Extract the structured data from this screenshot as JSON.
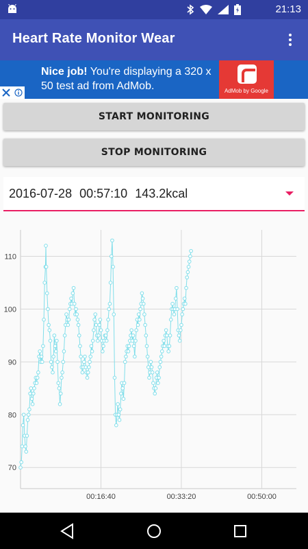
{
  "status_bar": {
    "time": "21:13",
    "icons": [
      "android-icon",
      "bluetooth-icon",
      "wifi-icon",
      "signal-icon",
      "battery-icon"
    ]
  },
  "app_bar": {
    "title": "Heart Rate Monitor Wear",
    "overflow_icon": "more-vert-icon"
  },
  "ad": {
    "headline": "Nice job!",
    "body": " You're displaying a 320 x 50 test ad from AdMob.",
    "logo_caption": "AdMob by Google",
    "ad_choices": "ad-choices-icon"
  },
  "buttons": {
    "start": "START MONITORING",
    "stop": "STOP MONITORING"
  },
  "session_spinner": {
    "date": "2016-07-28",
    "duration": "00:57:10",
    "calories": "143.2kcal",
    "accent": "#e91e63"
  },
  "colors": {
    "status_bar": "#303f9f",
    "app_bar": "#3f51b5",
    "ad_background": "#1a65c4",
    "ad_logo": "#e53935",
    "series": "#80deea"
  },
  "chart_data": {
    "type": "line",
    "x_unit": "seconds",
    "x_ticks": [
      "00:16:40",
      "00:33:20",
      "00:50:00"
    ],
    "x_tick_values": [
      1000,
      2000,
      3000
    ],
    "y_ticks": [
      "70",
      "80",
      "90",
      "100",
      "110"
    ],
    "y_tick_values": [
      70,
      80,
      90,
      100,
      110
    ],
    "xlim": [
      0,
      3430
    ],
    "ylim": [
      66,
      115
    ],
    "grid": true,
    "series": [
      {
        "color": "#80deea",
        "points": [
          [
            0,
            70
          ],
          [
            10,
            71
          ],
          [
            20,
            74
          ],
          [
            30,
            78
          ],
          [
            40,
            80
          ],
          [
            50,
            76
          ],
          [
            60,
            74
          ],
          [
            70,
            73
          ],
          [
            80,
            76
          ],
          [
            90,
            79
          ],
          [
            100,
            80
          ],
          [
            110,
            81
          ],
          [
            120,
            84
          ],
          [
            130,
            85
          ],
          [
            140,
            83
          ],
          [
            150,
            82
          ],
          [
            160,
            84
          ],
          [
            170,
            85
          ],
          [
            180,
            86
          ],
          [
            190,
            87
          ],
          [
            200,
            86
          ],
          [
            210,
            87
          ],
          [
            220,
            88
          ],
          [
            230,
            91
          ],
          [
            240,
            92
          ],
          [
            250,
            90
          ],
          [
            260,
            91
          ],
          [
            270,
            90
          ],
          [
            280,
            93
          ],
          [
            290,
            98
          ],
          [
            300,
            105
          ],
          [
            310,
            108
          ],
          [
            315,
            112
          ],
          [
            320,
            108
          ],
          [
            330,
            103
          ],
          [
            340,
            100
          ],
          [
            350,
            97
          ],
          [
            360,
            96
          ],
          [
            370,
            94
          ],
          [
            380,
            90
          ],
          [
            390,
            89
          ],
          [
            400,
            88
          ],
          [
            410,
            91
          ],
          [
            420,
            95
          ],
          [
            430,
            93
          ],
          [
            440,
            92
          ],
          [
            450,
            94
          ],
          [
            460,
            90
          ],
          [
            470,
            86
          ],
          [
            480,
            85
          ],
          [
            490,
            82
          ],
          [
            500,
            84
          ],
          [
            510,
            87
          ],
          [
            520,
            88
          ],
          [
            530,
            90
          ],
          [
            540,
            92
          ],
          [
            550,
            95
          ],
          [
            560,
            97
          ],
          [
            570,
            99
          ],
          [
            580,
            98
          ],
          [
            590,
            97
          ],
          [
            600,
            98
          ],
          [
            610,
            100
          ],
          [
            620,
            101
          ],
          [
            630,
            102
          ],
          [
            640,
            101
          ],
          [
            650,
            103
          ],
          [
            660,
            104
          ],
          [
            670,
            101
          ],
          [
            680,
            99
          ],
          [
            690,
            100
          ],
          [
            700,
            99
          ],
          [
            710,
            98
          ],
          [
            720,
            97
          ],
          [
            730,
            95
          ],
          [
            740,
            93
          ],
          [
            750,
            91
          ],
          [
            760,
            89
          ],
          [
            770,
            88
          ],
          [
            780,
            89
          ],
          [
            790,
            90
          ],
          [
            800,
            91
          ],
          [
            810,
            89
          ],
          [
            820,
            88
          ],
          [
            830,
            87
          ],
          [
            840,
            88
          ],
          [
            850,
            89
          ],
          [
            860,
            90
          ],
          [
            870,
            91
          ],
          [
            880,
            93
          ],
          [
            890,
            92
          ],
          [
            900,
            94
          ],
          [
            910,
            96
          ],
          [
            920,
            98
          ],
          [
            930,
            99
          ],
          [
            940,
            97
          ],
          [
            950,
            95
          ],
          [
            960,
            94
          ],
          [
            970,
            95
          ],
          [
            980,
            97
          ],
          [
            990,
            98
          ],
          [
            1000,
            96
          ],
          [
            1010,
            94
          ],
          [
            1020,
            92
          ],
          [
            1030,
            93
          ],
          [
            1040,
            94
          ],
          [
            1050,
            95
          ],
          [
            1060,
            95
          ],
          [
            1070,
            94
          ],
          [
            1080,
            96
          ],
          [
            1090,
            98
          ],
          [
            1100,
            100
          ],
          [
            1110,
            101
          ],
          [
            1120,
            105
          ],
          [
            1130,
            110
          ],
          [
            1140,
            113
          ],
          [
            1150,
            108
          ],
          [
            1160,
            99
          ],
          [
            1170,
            87
          ],
          [
            1180,
            80
          ],
          [
            1190,
            78
          ],
          [
            1200,
            80
          ],
          [
            1210,
            82
          ],
          [
            1220,
            80
          ],
          [
            1230,
            79
          ],
          [
            1240,
            81
          ],
          [
            1250,
            84
          ],
          [
            1260,
            86
          ],
          [
            1270,
            85
          ],
          [
            1280,
            83
          ],
          [
            1290,
            86
          ],
          [
            1300,
            90
          ],
          [
            1310,
            91
          ],
          [
            1320,
            92
          ],
          [
            1330,
            93
          ],
          [
            1340,
            92
          ],
          [
            1350,
            93
          ],
          [
            1360,
            94
          ],
          [
            1370,
            95
          ],
          [
            1380,
            96
          ],
          [
            1390,
            94
          ],
          [
            1400,
            95
          ],
          [
            1410,
            93
          ],
          [
            1420,
            91
          ],
          [
            1430,
            94
          ],
          [
            1440,
            96
          ],
          [
            1450,
            98
          ],
          [
            1460,
            97
          ],
          [
            1470,
            99
          ],
          [
            1480,
            98
          ],
          [
            1490,
            100
          ],
          [
            1500,
            101
          ],
          [
            1510,
            103
          ],
          [
            1520,
            102
          ],
          [
            1530,
            101
          ],
          [
            1540,
            99
          ],
          [
            1550,
            97
          ],
          [
            1560,
            95
          ],
          [
            1570,
            93
          ],
          [
            1580,
            91
          ],
          [
            1590,
            89
          ],
          [
            1600,
            87
          ],
          [
            1610,
            88
          ],
          [
            1620,
            90
          ],
          [
            1630,
            89
          ],
          [
            1640,
            88
          ],
          [
            1650,
            86
          ],
          [
            1660,
            85
          ],
          [
            1670,
            84
          ],
          [
            1680,
            85
          ],
          [
            1690,
            87
          ],
          [
            1700,
            88
          ],
          [
            1710,
            86
          ],
          [
            1720,
            87
          ],
          [
            1730,
            89
          ],
          [
            1740,
            90
          ],
          [
            1750,
            91
          ],
          [
            1760,
            92
          ],
          [
            1770,
            93
          ],
          [
            1780,
            94
          ],
          [
            1790,
            93
          ],
          [
            1800,
            95
          ],
          [
            1810,
            96
          ],
          [
            1820,
            95
          ],
          [
            1830,
            93
          ],
          [
            1840,
            92
          ],
          [
            1850,
            93
          ],
          [
            1860,
            95
          ],
          [
            1870,
            98
          ],
          [
            1880,
            100
          ],
          [
            1890,
            101
          ],
          [
            1900,
            100
          ],
          [
            1910,
            99
          ],
          [
            1920,
            100
          ],
          [
            1930,
            102
          ],
          [
            1940,
            104
          ],
          [
            1950,
            100
          ],
          [
            1960,
            96
          ],
          [
            1970,
            95
          ],
          [
            1980,
            94
          ],
          [
            1990,
            96
          ],
          [
            2000,
            97
          ],
          [
            2010,
            99
          ],
          [
            2020,
            100
          ],
          [
            2030,
            101
          ],
          [
            2040,
            102
          ],
          [
            2050,
            101
          ],
          [
            2060,
            104
          ],
          [
            2070,
            106
          ],
          [
            2080,
            107
          ],
          [
            2090,
            108
          ],
          [
            2100,
            109
          ],
          [
            2110,
            110
          ],
          [
            2120,
            111
          ]
        ]
      }
    ]
  }
}
